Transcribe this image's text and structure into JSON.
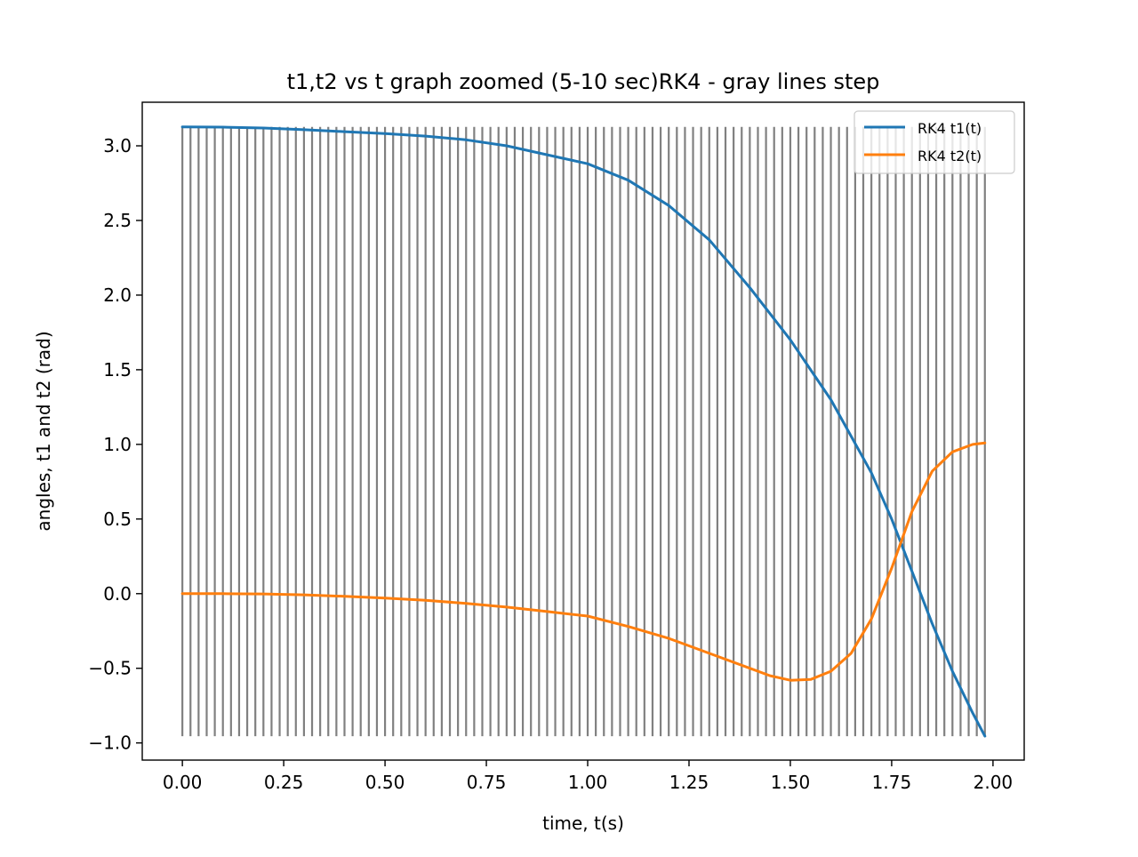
{
  "chart_data": {
    "type": "line",
    "title": "t1,t2 vs t graph zoomed (5-10 sec)RK4 - gray lines step",
    "xlabel": "time, t(s)",
    "ylabel": "angles, t1 and t2 (rad)",
    "xlim": [
      -0.099,
      2.077
    ],
    "ylim": [
      -1.115,
      3.292
    ],
    "xticks": [
      0.0,
      0.25,
      0.5,
      0.75,
      1.0,
      1.25,
      1.5,
      1.75,
      2.0
    ],
    "xtick_labels": [
      "0.00",
      "0.25",
      "0.50",
      "0.75",
      "1.00",
      "1.25",
      "1.50",
      "1.75",
      "2.00"
    ],
    "yticks": [
      -1.0,
      -0.5,
      0.0,
      0.5,
      1.0,
      1.5,
      2.0,
      2.5,
      3.0
    ],
    "ytick_labels": [
      "−1.0",
      "−0.5",
      "0.0",
      "0.5",
      "1.0",
      "1.5",
      "2.0",
      "2.5",
      "3.0"
    ],
    "grid": false,
    "legend_position": "top-right",
    "step_lines": {
      "color": "#808080",
      "start": 0.0,
      "end": 1.98,
      "step": 0.02,
      "ymin": -0.955,
      "ymax": 3.127
    },
    "series": [
      {
        "name": "RK4 t1(t)",
        "color": "#1f77b4",
        "x": [
          0.0,
          0.1,
          0.2,
          0.3,
          0.4,
          0.5,
          0.6,
          0.7,
          0.8,
          0.9,
          1.0,
          1.1,
          1.2,
          1.3,
          1.4,
          1.5,
          1.6,
          1.7,
          1.75,
          1.8,
          1.85,
          1.9,
          1.95,
          1.98
        ],
        "values": [
          3.127,
          3.125,
          3.119,
          3.108,
          3.095,
          3.082,
          3.065,
          3.04,
          3.0,
          2.94,
          2.88,
          2.77,
          2.6,
          2.37,
          2.05,
          1.7,
          1.3,
          0.81,
          0.5,
          0.15,
          -0.2,
          -0.52,
          -0.8,
          -0.955
        ]
      },
      {
        "name": "RK4 t2(t)",
        "color": "#ff7f0e",
        "x": [
          0.0,
          0.1,
          0.2,
          0.3,
          0.4,
          0.5,
          0.6,
          0.7,
          0.8,
          0.9,
          1.0,
          1.1,
          1.2,
          1.3,
          1.4,
          1.45,
          1.5,
          1.55,
          1.6,
          1.65,
          1.7,
          1.75,
          1.8,
          1.85,
          1.9,
          1.95,
          1.98
        ],
        "values": [
          0.0,
          0.0,
          -0.002,
          -0.008,
          -0.018,
          -0.03,
          -0.045,
          -0.065,
          -0.09,
          -0.12,
          -0.15,
          -0.22,
          -0.3,
          -0.4,
          -0.5,
          -0.55,
          -0.58,
          -0.575,
          -0.52,
          -0.4,
          -0.17,
          0.17,
          0.55,
          0.82,
          0.95,
          1.0,
          1.01
        ]
      }
    ]
  }
}
